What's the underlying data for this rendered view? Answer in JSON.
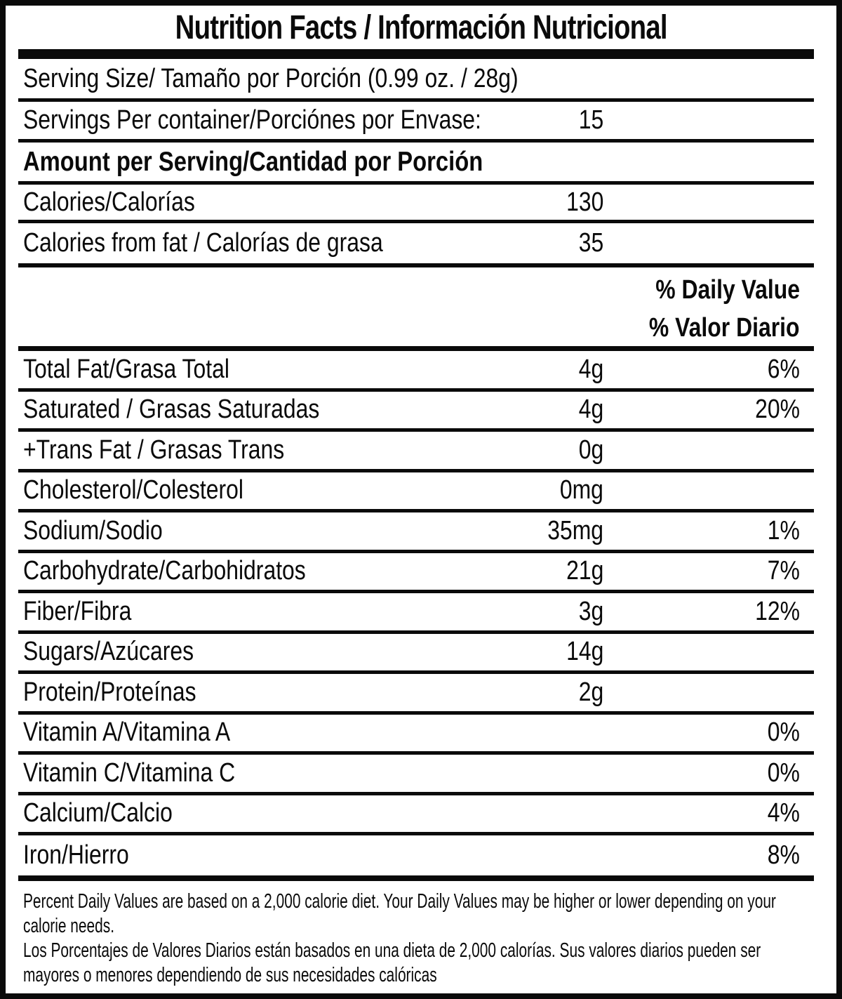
{
  "title": "Nutrition Facts / Información Nutricional",
  "serving": {
    "size_label": "Serving Size/ Tamaño por Porción  (0.99 oz. / 28g)",
    "per_container_label": "Servings Per container/Porciónes por Envase:",
    "per_container_value": "15"
  },
  "amount_header": "Amount per Serving/Cantidad por Porción",
  "calories": {
    "label": "Calories/Calorías",
    "value": "130"
  },
  "calories_from_fat": {
    "label": "Calories from fat / Calorías de grasa",
    "value": "35"
  },
  "daily_value_header": {
    "en": "% Daily Value",
    "es": "% Valor Diario"
  },
  "nutrients": [
    {
      "label": "Total Fat/Grasa Total",
      "amount": "4g",
      "dv": "6%"
    },
    {
      "label": "Saturated / Grasas Saturadas",
      "amount": "4g",
      "dv": "20%"
    },
    {
      "label": "+Trans Fat / Grasas Trans",
      "amount": "0g",
      "dv": ""
    },
    {
      "label": "Cholesterol/Colesterol",
      "amount": "0mg",
      "dv": ""
    },
    {
      "label": "Sodium/Sodio",
      "amount": "35mg",
      "dv": "1%"
    },
    {
      "label": "Carbohydrate/Carbohidratos",
      "amount": "21g",
      "dv": "7%"
    },
    {
      "label": "Fiber/Fibra",
      "amount": "3g",
      "dv": "12%"
    },
    {
      "label": "Sugars/Azúcares",
      "amount": "14g",
      "dv": ""
    },
    {
      "label": "Protein/Proteínas",
      "amount": "2g",
      "dv": ""
    },
    {
      "label": "Vitamin A/Vitamina A",
      "amount": "",
      "dv": "0%"
    },
    {
      "label": "Vitamin C/Vitamina C",
      "amount": "",
      "dv": "0%"
    },
    {
      "label": "Calcium/Calcio",
      "amount": "",
      "dv": "4%"
    },
    {
      "label": "Iron/Hierro",
      "amount": "",
      "dv": "8%"
    }
  ],
  "footnote": {
    "en_lines": [
      "Percent Daily Values are based on a 2,000 calorie diet. Your Daily Values may be higher or lower depending on your",
      "calorie needs."
    ],
    "es_lines": [
      "Los Porcentajes de Valores Diarios están basados en una dieta de 2,000 calorías. Sus valores diarios pueden ser",
      "mayores o menores dependiendo de sus necesidades calóricas"
    ]
  },
  "colors": {
    "text": "#0a0a0a",
    "background": "#ffffff"
  }
}
